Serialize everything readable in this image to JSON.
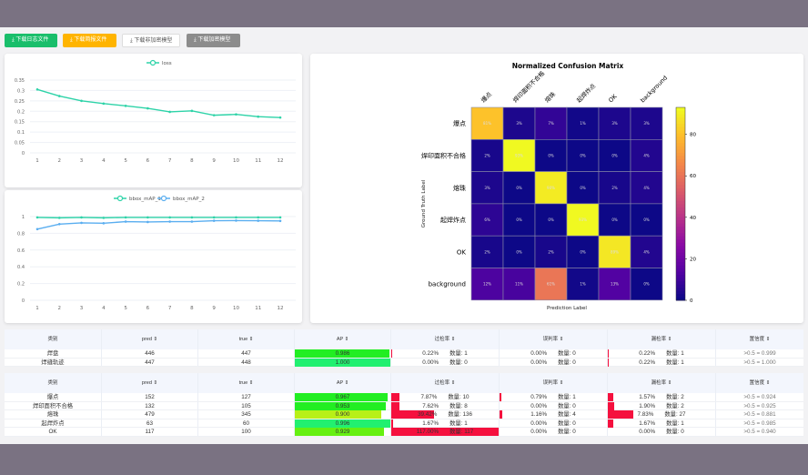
{
  "toolbar": {
    "buttons": [
      {
        "label": "下载日志文件",
        "color": "#19be6b",
        "text": "#ffffff"
      },
      {
        "label": "下载简报文件",
        "color": "#ffb400",
        "text": "#ffffff"
      },
      {
        "label": "下载非加密模型",
        "color": "#ffffff",
        "text": "#555555"
      },
      {
        "label": "下载加密模型",
        "color": "#8c8c8c",
        "text": "#ffffff"
      }
    ]
  },
  "chart_data": [
    {
      "type": "line",
      "legend": [
        "loss"
      ],
      "x": [
        1,
        2,
        3,
        4,
        5,
        6,
        7,
        8,
        9,
        10,
        11,
        12
      ],
      "ylim": [
        0,
        0.35
      ],
      "yticks": [
        0,
        0.05,
        0.1,
        0.15,
        0.2,
        0.25,
        0.3,
        0.35
      ],
      "series": [
        {
          "name": "loss",
          "color": "#2ed3a8",
          "values": [
            0.305,
            0.273,
            0.25,
            0.237,
            0.226,
            0.214,
            0.197,
            0.202,
            0.181,
            0.185,
            0.174,
            0.17
          ]
        }
      ]
    },
    {
      "type": "line",
      "legend": [
        "bbox_mAP_1",
        "bbox_mAP_2"
      ],
      "x": [
        1,
        2,
        3,
        4,
        5,
        6,
        7,
        8,
        9,
        10,
        11,
        12
      ],
      "ylim": [
        0,
        1
      ],
      "yticks": [
        0,
        0.2,
        0.4,
        0.6,
        0.8,
        1
      ],
      "series": [
        {
          "name": "bbox_mAP_1",
          "color": "#2ed3a8",
          "values": [
            0.99,
            0.985,
            0.99,
            0.985,
            0.99,
            0.99,
            0.99,
            0.99,
            0.99,
            0.99,
            0.99,
            0.99
          ]
        },
        {
          "name": "bbox_mAP_2",
          "color": "#5aaef0",
          "values": [
            0.85,
            0.91,
            0.925,
            0.92,
            0.94,
            0.935,
            0.94,
            0.94,
            0.95,
            0.952,
            0.95,
            0.948
          ]
        }
      ]
    },
    {
      "type": "heatmap",
      "title": "Normalized Confusion Matrix",
      "xlabel": "Prediction Label",
      "ylabel": "Ground Truth Label",
      "labels": [
        "爆点",
        "焊印面积不合格",
        "熔珠",
        "起焊炸点",
        "OK",
        "background"
      ],
      "values": [
        [
          81,
          3,
          7,
          1,
          3,
          3
        ],
        [
          2,
          93,
          0,
          0,
          0,
          4
        ],
        [
          3,
          0,
          90,
          0,
          2,
          4
        ],
        [
          6,
          0,
          0,
          93,
          0,
          0
        ],
        [
          2,
          0,
          2,
          0,
          89,
          4
        ],
        [
          12,
          11,
          61,
          1,
          13,
          0
        ]
      ],
      "colorbar": {
        "range": [
          0,
          93
        ],
        "ticks": [
          0,
          20,
          40,
          60,
          80
        ]
      }
    }
  ],
  "table_headers": [
    "类别",
    "pred ⇕",
    "true ⇕",
    "AP ⇕",
    "过检率 ⇕",
    "误判率 ⇕",
    "漏检率 ⇕",
    "置信度 ⇕"
  ],
  "count_label": "数量:",
  "table1": [
    {
      "cls": "焊盘",
      "pred": "446",
      "true": "447",
      "ap": "0.986",
      "fp": "0.22%",
      "fpn": "1",
      "mis": "0.00%",
      "misn": "0",
      "miss": "0.22%",
      "missn": "1",
      "conf": ">0.5 = 0.999"
    },
    {
      "cls": "焊缝轨迹",
      "pred": "447",
      "true": "448",
      "ap": "1.000",
      "fp": "0.00%",
      "fpn": "0",
      "mis": "0.00%",
      "misn": "0",
      "miss": "0.22%",
      "missn": "1",
      "conf": ">0.5 = 1.000"
    }
  ],
  "table2": [
    {
      "cls": "爆点",
      "pred": "152",
      "true": "127",
      "ap": "0.967",
      "fp": "7.87%",
      "fpn": "10",
      "mis": "0.79%",
      "misn": "1",
      "miss": "1.57%",
      "missn": "2",
      "conf": ">0.5 = 0.924"
    },
    {
      "cls": "焊印面积不合格",
      "pred": "132",
      "true": "105",
      "ap": "0.953",
      "fp": "7.62%",
      "fpn": "8",
      "mis": "0.00%",
      "misn": "0",
      "miss": "1.90%",
      "missn": "2",
      "conf": ">0.5 = 0.925"
    },
    {
      "cls": "熔珠",
      "pred": "479",
      "true": "345",
      "ap": "0.900",
      "fp": "39.42%",
      "fpn": "136",
      "mis": "1.16%",
      "misn": "4",
      "miss": "7.83%",
      "missn": "27",
      "conf": ">0.5 = 0.881"
    },
    {
      "cls": "起焊炸点",
      "pred": "63",
      "true": "60",
      "ap": "0.996",
      "fp": "1.67%",
      "fpn": "1",
      "mis": "0.00%",
      "misn": "0",
      "miss": "1.67%",
      "missn": "1",
      "conf": ">0.5 = 0.985"
    },
    {
      "cls": "OK",
      "pred": "117",
      "true": "100",
      "ap": "0.929",
      "fp": "117.00%",
      "fpn": "117",
      "mis": "0.00%",
      "misn": "0",
      "miss": "0.00%",
      "missn": "0",
      "conf": ">0.5 = 0.940"
    }
  ]
}
